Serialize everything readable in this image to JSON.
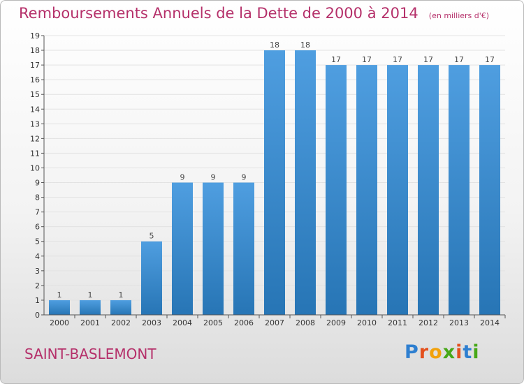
{
  "title": "Remboursements Annuels de la Dette de 2000 à 2014",
  "unit": "(en milliers d'€)",
  "commune": "SAINT-BASLEMONT",
  "logo": {
    "letters": [
      "P",
      "r",
      "o",
      "x",
      "i",
      "t",
      "i"
    ],
    "colors": [
      "#2e7fd0",
      "#e4501d",
      "#f2a20c",
      "#47a818",
      "#e4501d",
      "#2e7fd0",
      "#47a818"
    ]
  },
  "colors": {
    "bar": "#4f9ee0",
    "bar_dark": "#2775b5",
    "title": "#b5306a",
    "grid": "#e2e2e2"
  },
  "chart_data": {
    "type": "bar",
    "categories": [
      "2000",
      "2001",
      "2002",
      "2003",
      "2004",
      "2005",
      "2006",
      "2007",
      "2008",
      "2009",
      "2010",
      "2011",
      "2012",
      "2013",
      "2014"
    ],
    "values": [
      1,
      1,
      1,
      5,
      9,
      9,
      9,
      18,
      18,
      17,
      17,
      17,
      17,
      17,
      17
    ],
    "ylim": [
      0,
      19
    ],
    "yticks": [
      0,
      1,
      2,
      3,
      4,
      5,
      6,
      7,
      8,
      9,
      10,
      11,
      12,
      13,
      14,
      15,
      16,
      17,
      18,
      19
    ],
    "grid": true,
    "data_labels": true
  }
}
